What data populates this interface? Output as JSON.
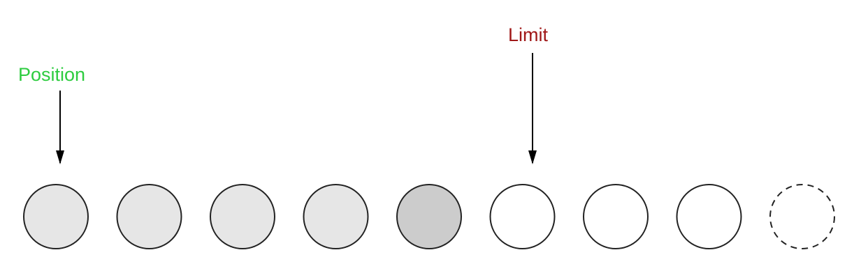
{
  "labels": {
    "position": {
      "text": "Position",
      "color": "#2ecc40"
    },
    "limit": {
      "text": "Limit",
      "color": "#a01818"
    }
  },
  "buffer": {
    "cells": [
      {
        "state": "unread",
        "fill": "#e6e6e6",
        "border": "solid"
      },
      {
        "state": "unread",
        "fill": "#e6e6e6",
        "border": "solid"
      },
      {
        "state": "unread",
        "fill": "#e6e6e6",
        "border": "solid"
      },
      {
        "state": "unread",
        "fill": "#e6e6e6",
        "border": "solid"
      },
      {
        "state": "last-element",
        "fill": "#cccccc",
        "border": "solid"
      },
      {
        "state": "empty",
        "fill": "#ffffff",
        "border": "solid"
      },
      {
        "state": "empty",
        "fill": "#ffffff",
        "border": "solid"
      },
      {
        "state": "empty",
        "fill": "#ffffff",
        "border": "solid"
      },
      {
        "state": "capacity-end",
        "fill": "#ffffff",
        "border": "dashed"
      }
    ]
  },
  "pointers": {
    "position_index": 0,
    "limit_index": 5
  },
  "colors": {
    "stroke": "#222222",
    "arrow": "#000000"
  }
}
